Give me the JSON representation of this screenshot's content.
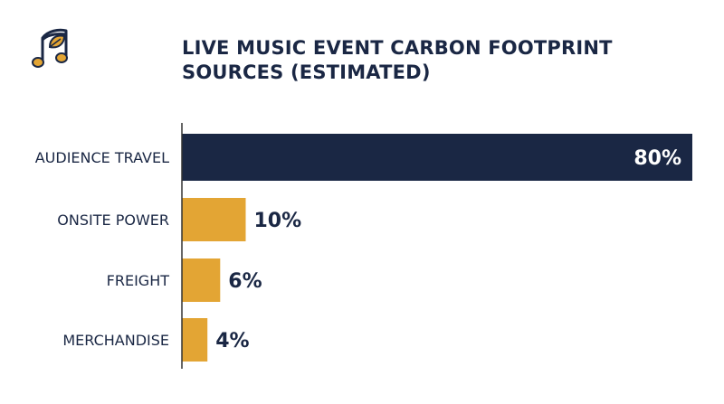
{
  "title_lines": [
    "LIVE MUSIC EVENT CARBON FOOTPRINT",
    "SOURCES (ESTIMATED)"
  ],
  "logo_icon": "music-note-leaf-icon",
  "colors": {
    "primary": "#1a2744",
    "secondary": "#e3a534",
    "axis": "#333333"
  },
  "chart_data": {
    "type": "bar",
    "orientation": "horizontal",
    "title": "LIVE MUSIC EVENT CARBON FOOTPRINT SOURCES (ESTIMATED)",
    "categories": [
      "AUDIENCE TRAVEL",
      "ONSITE POWER",
      "FREIGHT",
      "MERCHANDISE"
    ],
    "values": [
      80,
      10,
      6,
      4
    ],
    "value_labels": [
      "80%",
      "10%",
      "6%",
      "4%"
    ],
    "unit": "%",
    "xlim": [
      0,
      80
    ],
    "xlabel": "",
    "ylabel": "",
    "grid": false,
    "legend": "none"
  }
}
